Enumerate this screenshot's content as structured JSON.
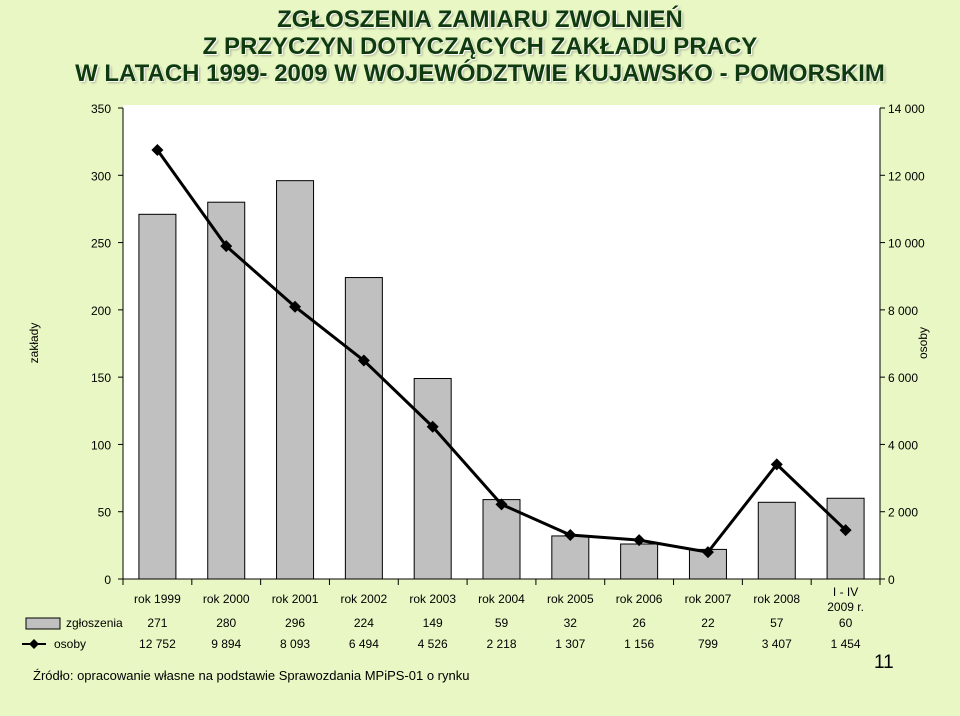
{
  "title_lines": [
    "ZGŁOSZENIA ZAMIARU ZWOLNIEŃ",
    "Z PRZYCZYN DOTYCZĄCYCH ZAKŁADU PRACY",
    "W LATACH 1999- 2009 W WOJEWÓDZTWIE KUJAWSKO - POMORSKIM"
  ],
  "source": "Źródło: opracowanie własne na podstawie Sprawozdania MPiPS-01 o rynku",
  "page_number": "11",
  "chart_data": {
    "type": "bar",
    "categories": [
      "rok 1999",
      "rok 2000",
      "rok 2001",
      "rok 2002",
      "rok 2003",
      "rok 2004",
      "rok 2005",
      "rok 2006",
      "rok 2007",
      "rok 2008",
      "I - IV 2009 r."
    ],
    "series": [
      {
        "name": "zgłoszenia",
        "type": "bar",
        "axis": "left",
        "color": "#c0c0c0",
        "values": [
          271,
          280,
          296,
          224,
          149,
          59,
          32,
          26,
          22,
          57,
          60
        ],
        "labels": [
          "271",
          "280",
          "296",
          "224",
          "149",
          "59",
          "32",
          "26",
          "22",
          "57",
          "60"
        ]
      },
      {
        "name": "osoby",
        "type": "line",
        "axis": "right",
        "color": "#000000",
        "marker": "diamond",
        "values": [
          12752,
          9894,
          8093,
          6494,
          4526,
          2218,
          1307,
          1156,
          799,
          3407,
          1454
        ],
        "labels": [
          "12 752",
          "9 894",
          "8 093",
          "6 494",
          "4 526",
          "2 218",
          "1 307",
          "1 156",
          "799",
          "3 407",
          "1 454"
        ]
      }
    ],
    "ylabel": "zakłady",
    "y2label": "osoby",
    "ylim": [
      0,
      350
    ],
    "y2lim": [
      0,
      14000
    ],
    "yticks": [
      "0",
      "50",
      "100",
      "150",
      "200",
      "250",
      "300",
      "350"
    ],
    "y2ticks": [
      "0",
      "2 000",
      "4 000",
      "6 000",
      "8 000",
      "10 000",
      "12 000",
      "14 000"
    ],
    "data_table": true,
    "grid": false
  }
}
